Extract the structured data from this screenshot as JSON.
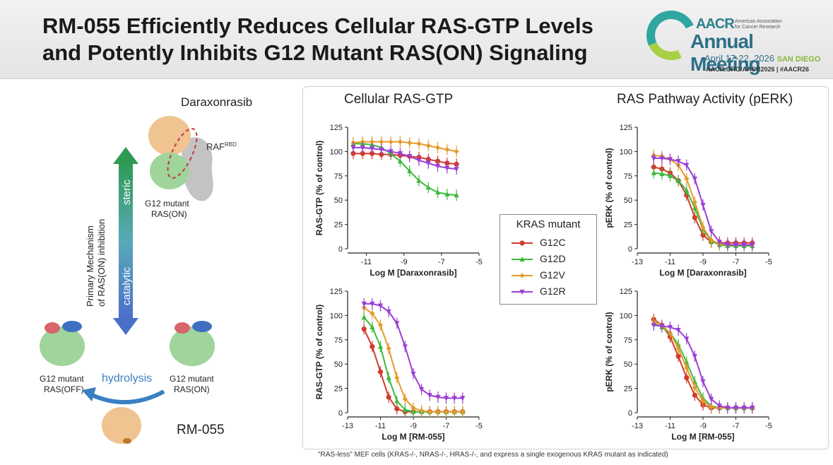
{
  "header": {
    "title_line1": "RM-055 Efficiently Reduces Cellular RAS-GTP Levels",
    "title_line2": "and Potently Inhibits G12 Mutant RAS(ON) Signaling",
    "logo": {
      "aacr": "AACR",
      "assoc": "American Association for Cancer Research",
      "annual": "Annual Meeting",
      "dates": "April 17-22, 2026",
      "city": "SAN DIEGO",
      "url": "AACR.ORG/AACR2026 | #AACR26"
    }
  },
  "mechanism": {
    "drug_top": "Daraxonrasib",
    "raf_label": "RAF",
    "raf_sup": "RBD",
    "ras_on_top_1": "G12 mutant",
    "ras_on_top_2": "RAS(ON)",
    "axis_label_1": "Primary Mechanism",
    "axis_label_2": "of RAS(ON) inhibition",
    "steric": "steric",
    "catalytic": "catalytic",
    "hydrolysis": "hydrolysis",
    "ras_off_1": "G12 mutant",
    "ras_off_2": "RAS(OFF)",
    "ras_on_bottom_1": "G12 mutant",
    "ras_on_bottom_2": "RAS(ON)",
    "drug_bottom": "RM-055",
    "colors": {
      "ras": "#9fd49a",
      "raf": "#f0c79a",
      "blue": "#3f6fc0",
      "red": "#d9646b",
      "arrow": "#3a7fc1"
    }
  },
  "panels": {
    "left_title": "Cellular RAS-GTP",
    "right_title": "RAS Pathway Activity (pERK)"
  },
  "legend": {
    "title": "KRAS mutant",
    "items": [
      {
        "label": "G12C",
        "color": "#d23b2e",
        "marker": "circle"
      },
      {
        "label": "G12D",
        "color": "#3cba3c",
        "marker": "triangle-up"
      },
      {
        "label": "G12V",
        "color": "#e59a2b",
        "marker": "diamond"
      },
      {
        "label": "G12R",
        "color": "#9b3fd4",
        "marker": "triangle-down"
      }
    ]
  },
  "footnote": "\"RAS-less\" MEF cells (KRAS-/-, NRAS-/-, HRAS-/-, and express a single exogenous KRAS mutant as indicated)",
  "chart_data": [
    {
      "type": "line",
      "xlabel": "Log M [Daraxonrasib]",
      "ylabel": "RAS-GTP (% of control)",
      "xlim": [
        -12,
        -5
      ],
      "ylim": [
        0,
        125
      ],
      "xticks": [
        "-11",
        "-9",
        "-7",
        "-5"
      ],
      "yticks": [
        "0",
        "25",
        "50",
        "75",
        "100",
        "125"
      ],
      "x": [
        -11.7,
        -11.2,
        -10.7,
        -10.2,
        -9.7,
        -9.2,
        -8.7,
        -8.2,
        -7.7,
        -7.2,
        -6.7,
        -6.2
      ],
      "series": [
        {
          "name": "G12C",
          "values": [
            98,
            98,
            98,
            97,
            97,
            96,
            95,
            94,
            92,
            90,
            88,
            87
          ]
        },
        {
          "name": "G12D",
          "values": [
            108,
            108,
            107,
            104,
            98,
            90,
            80,
            70,
            63,
            58,
            56,
            55
          ]
        },
        {
          "name": "G12V",
          "values": [
            109,
            110,
            110,
            110,
            110,
            110,
            109,
            108,
            106,
            104,
            102,
            100
          ]
        },
        {
          "name": "G12R",
          "values": [
            104,
            104,
            103,
            102,
            100,
            98,
            95,
            91,
            88,
            85,
            83,
            82
          ]
        }
      ]
    },
    {
      "type": "line",
      "xlabel": "Log M [Daraxonrasib]",
      "ylabel": "pERK (% of control)",
      "xlim": [
        -13,
        -5
      ],
      "ylim": [
        0,
        125
      ],
      "xticks": [
        "-13",
        "-11",
        "-9",
        "-7",
        "-5"
      ],
      "yticks": [
        "0",
        "25",
        "50",
        "75",
        "100",
        "125"
      ],
      "x": [
        -12,
        -11.5,
        -11,
        -10.5,
        -10,
        -9.5,
        -9,
        -8.5,
        -8,
        -7.5,
        -7,
        -6.5,
        -6
      ],
      "series": [
        {
          "name": "G12C",
          "values": [
            84,
            82,
            78,
            70,
            55,
            32,
            14,
            7,
            6,
            6,
            6,
            6,
            6
          ]
        },
        {
          "name": "G12D",
          "values": [
            78,
            77,
            75,
            70,
            60,
            42,
            20,
            8,
            4,
            3,
            3,
            3,
            3
          ]
        },
        {
          "name": "G12V",
          "values": [
            96,
            95,
            92,
            86,
            72,
            48,
            22,
            9,
            5,
            4,
            4,
            4,
            4
          ]
        },
        {
          "name": "G12R",
          "values": [
            93,
            93,
            92,
            90,
            86,
            72,
            45,
            18,
            7,
            4,
            4,
            4,
            4
          ]
        }
      ]
    },
    {
      "type": "line",
      "xlabel": "Log M [RM-055]",
      "ylabel": "RAS-GTP (% of control)",
      "xlim": [
        -13,
        -5
      ],
      "ylim": [
        0,
        125
      ],
      "xticks": [
        "-13",
        "-11",
        "-9",
        "-7",
        "-5"
      ],
      "yticks": [
        "0",
        "25",
        "50",
        "75",
        "100",
        "125"
      ],
      "x": [
        -12,
        -11.5,
        -11,
        -10.5,
        -10,
        -9.5,
        -9,
        -8.5,
        -8,
        -7.5,
        -7,
        -6.5,
        -6
      ],
      "series": [
        {
          "name": "G12C",
          "values": [
            86,
            68,
            42,
            16,
            4,
            1,
            1,
            1,
            1,
            1,
            1,
            1,
            1
          ]
        },
        {
          "name": "G12D",
          "values": [
            98,
            88,
            68,
            36,
            12,
            3,
            1,
            1,
            1,
            1,
            1,
            1,
            1
          ]
        },
        {
          "name": "G12V",
          "values": [
            108,
            102,
            90,
            66,
            36,
            14,
            5,
            2,
            1,
            1,
            1,
            1,
            1
          ]
        },
        {
          "name": "G12R",
          "values": [
            112,
            112,
            110,
            104,
            92,
            68,
            40,
            24,
            18,
            16,
            15,
            15,
            15
          ]
        }
      ]
    },
    {
      "type": "line",
      "xlabel": "Log M [RM-055]",
      "ylabel": "pERK (% of control)",
      "xlim": [
        -13,
        -5
      ],
      "ylim": [
        0,
        125
      ],
      "xticks": [
        "-13",
        "-11",
        "-9",
        "-7",
        "-5"
      ],
      "yticks": [
        "0",
        "25",
        "50",
        "75",
        "100",
        "125"
      ],
      "x": [
        -12,
        -11.5,
        -11,
        -10.5,
        -10,
        -9.5,
        -9,
        -8.5,
        -8,
        -7.5,
        -7,
        -6.5,
        -6
      ],
      "series": [
        {
          "name": "G12C",
          "values": [
            96,
            90,
            78,
            58,
            36,
            18,
            8,
            5,
            5,
            5,
            5,
            5,
            5
          ]
        },
        {
          "name": "G12D",
          "values": [
            92,
            88,
            82,
            70,
            52,
            32,
            15,
            7,
            5,
            5,
            5,
            5,
            5
          ]
        },
        {
          "name": "G12V",
          "values": [
            94,
            90,
            82,
            66,
            46,
            26,
            12,
            6,
            5,
            5,
            5,
            5,
            5
          ]
        },
        {
          "name": "G12R",
          "values": [
            90,
            89,
            88,
            85,
            76,
            58,
            32,
            14,
            7,
            5,
            5,
            5,
            5
          ]
        }
      ]
    }
  ]
}
